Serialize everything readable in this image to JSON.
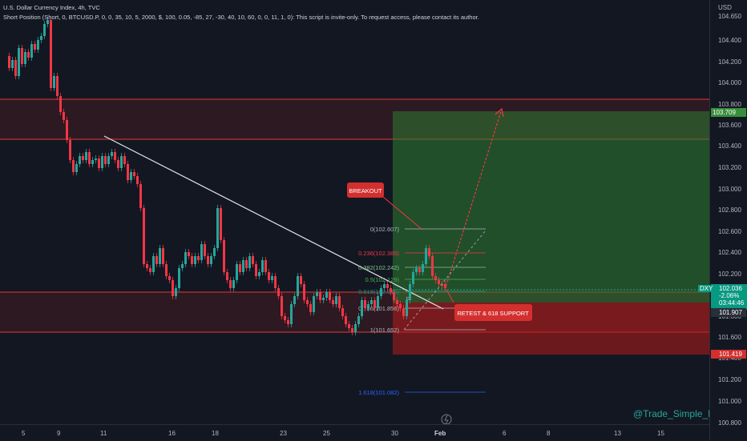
{
  "header": {
    "title": "U.S. Dollar Currency Index, 4h, TVC",
    "indicator": "Short Position (Short, 0, BTCUSD.P, 0, 0, 35, 10, 5, 2000, $, 100, 0.05, -85, 27, -30, 40, 10, 60, 0, 0, 11, 1, 0): This script is invite-only. To request access, please contact its author."
  },
  "price_axis": {
    "currency": "USD",
    "ticks": [
      "104.650",
      "104.400",
      "104.200",
      "104.000",
      "103.800",
      "103.600",
      "103.400",
      "103.200",
      "103.000",
      "102.800",
      "102.600",
      "102.400",
      "102.200",
      "102.000",
      "101.800",
      "101.600",
      "101.400",
      "101.200",
      "101.000",
      "100.800"
    ],
    "labels": {
      "top_box": "103.709",
      "symbol": "DXY",
      "last_price": "102.036",
      "change": "-2.06%",
      "countdown": "03:44:46",
      "entry": "101.907",
      "stop": "101.419"
    }
  },
  "time_axis": {
    "ticks": [
      "5",
      "9",
      "11",
      "16",
      "18",
      "23",
      "25",
      "30",
      "Feb",
      "6",
      "8",
      "13",
      "15"
    ]
  },
  "annotations": {
    "breakout": "BREAKOUT",
    "retest": "RETEST & 618 SUPPORT"
  },
  "fib_levels": [
    {
      "label": "0(102.607)",
      "color": "#b2b5be"
    },
    {
      "label": "0.236(102.385)",
      "color": "#f23645"
    },
    {
      "label": "0.382(102.242)",
      "color": "#81c784"
    },
    {
      "label": "0.5(102.129)",
      "color": "#4caf50"
    },
    {
      "label": "0.618(102.015)",
      "color": "#089981"
    },
    {
      "label": "0.786(101.856)",
      "color": "#b2b5be"
    },
    {
      "label": "1(101.652)",
      "color": "#b2b5be"
    },
    {
      "label": "1.618(101.082)",
      "color": "#2962ff"
    }
  ],
  "watermark": "@Trade_Simple_FX",
  "colors": {
    "bull": "#26a69a",
    "bear": "#f23645",
    "target_zone": "#2e7d32",
    "stop_zone": "#b71c1c"
  }
}
